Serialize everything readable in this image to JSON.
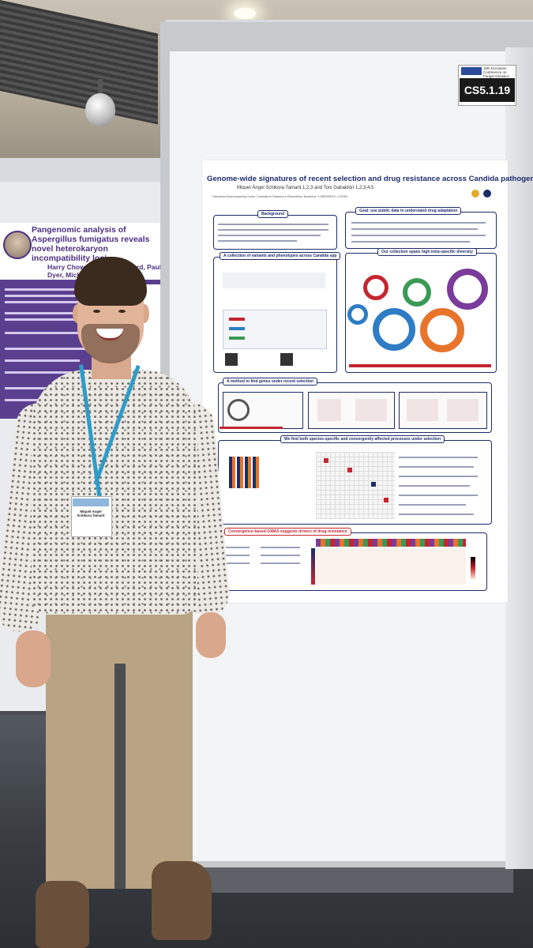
{
  "booth": {
    "code": "CS5.1.19",
    "sign_text": "16th European Conference on Fungal Genetics",
    "sign_logo_text": "ECFG 2023"
  },
  "main_poster": {
    "title": "Genome-wide signatures of recent selection and drug resistance across Candida pathogens",
    "authors": "Miquel Àngel Schikora-Tamarit 1,2,3 and Toni Gabaldón 1,2,3,4,5",
    "affiliation": "1 Barcelona Supercomputing Centre; 2 Institute for Research in Biomedicine, Barcelona; 3 CIBERINFEC; 4 ICREA",
    "sections": {
      "background": "Background",
      "goal": "Goal: use public data to understand drug adaptation",
      "variants": "A collection of variants and phenotypes across Candida spp",
      "diversity": "Our collection spans high intra-specific diversity",
      "method": "A method to find genes under recent selection",
      "convergent": "We find both species-specific and convergently affected processes under selection",
      "gwas": "Convergence-based GWAS suggests drivers of drug resistance"
    },
    "colors": {
      "accent": "#1c2c6b",
      "highlight": "#c3262f"
    }
  },
  "left_poster": {
    "title": "Pangenomic analysis of Aspergillus fumigatus reveals novel heterokaryon incompatibility loci",
    "authors": "Harry Chown, Felicia Stanford, Paul Dyer, Michael Bromley",
    "color": "#5b3f8f"
  },
  "name_badge": {
    "name": "Miquel Angel Schikora Tamarit"
  }
}
